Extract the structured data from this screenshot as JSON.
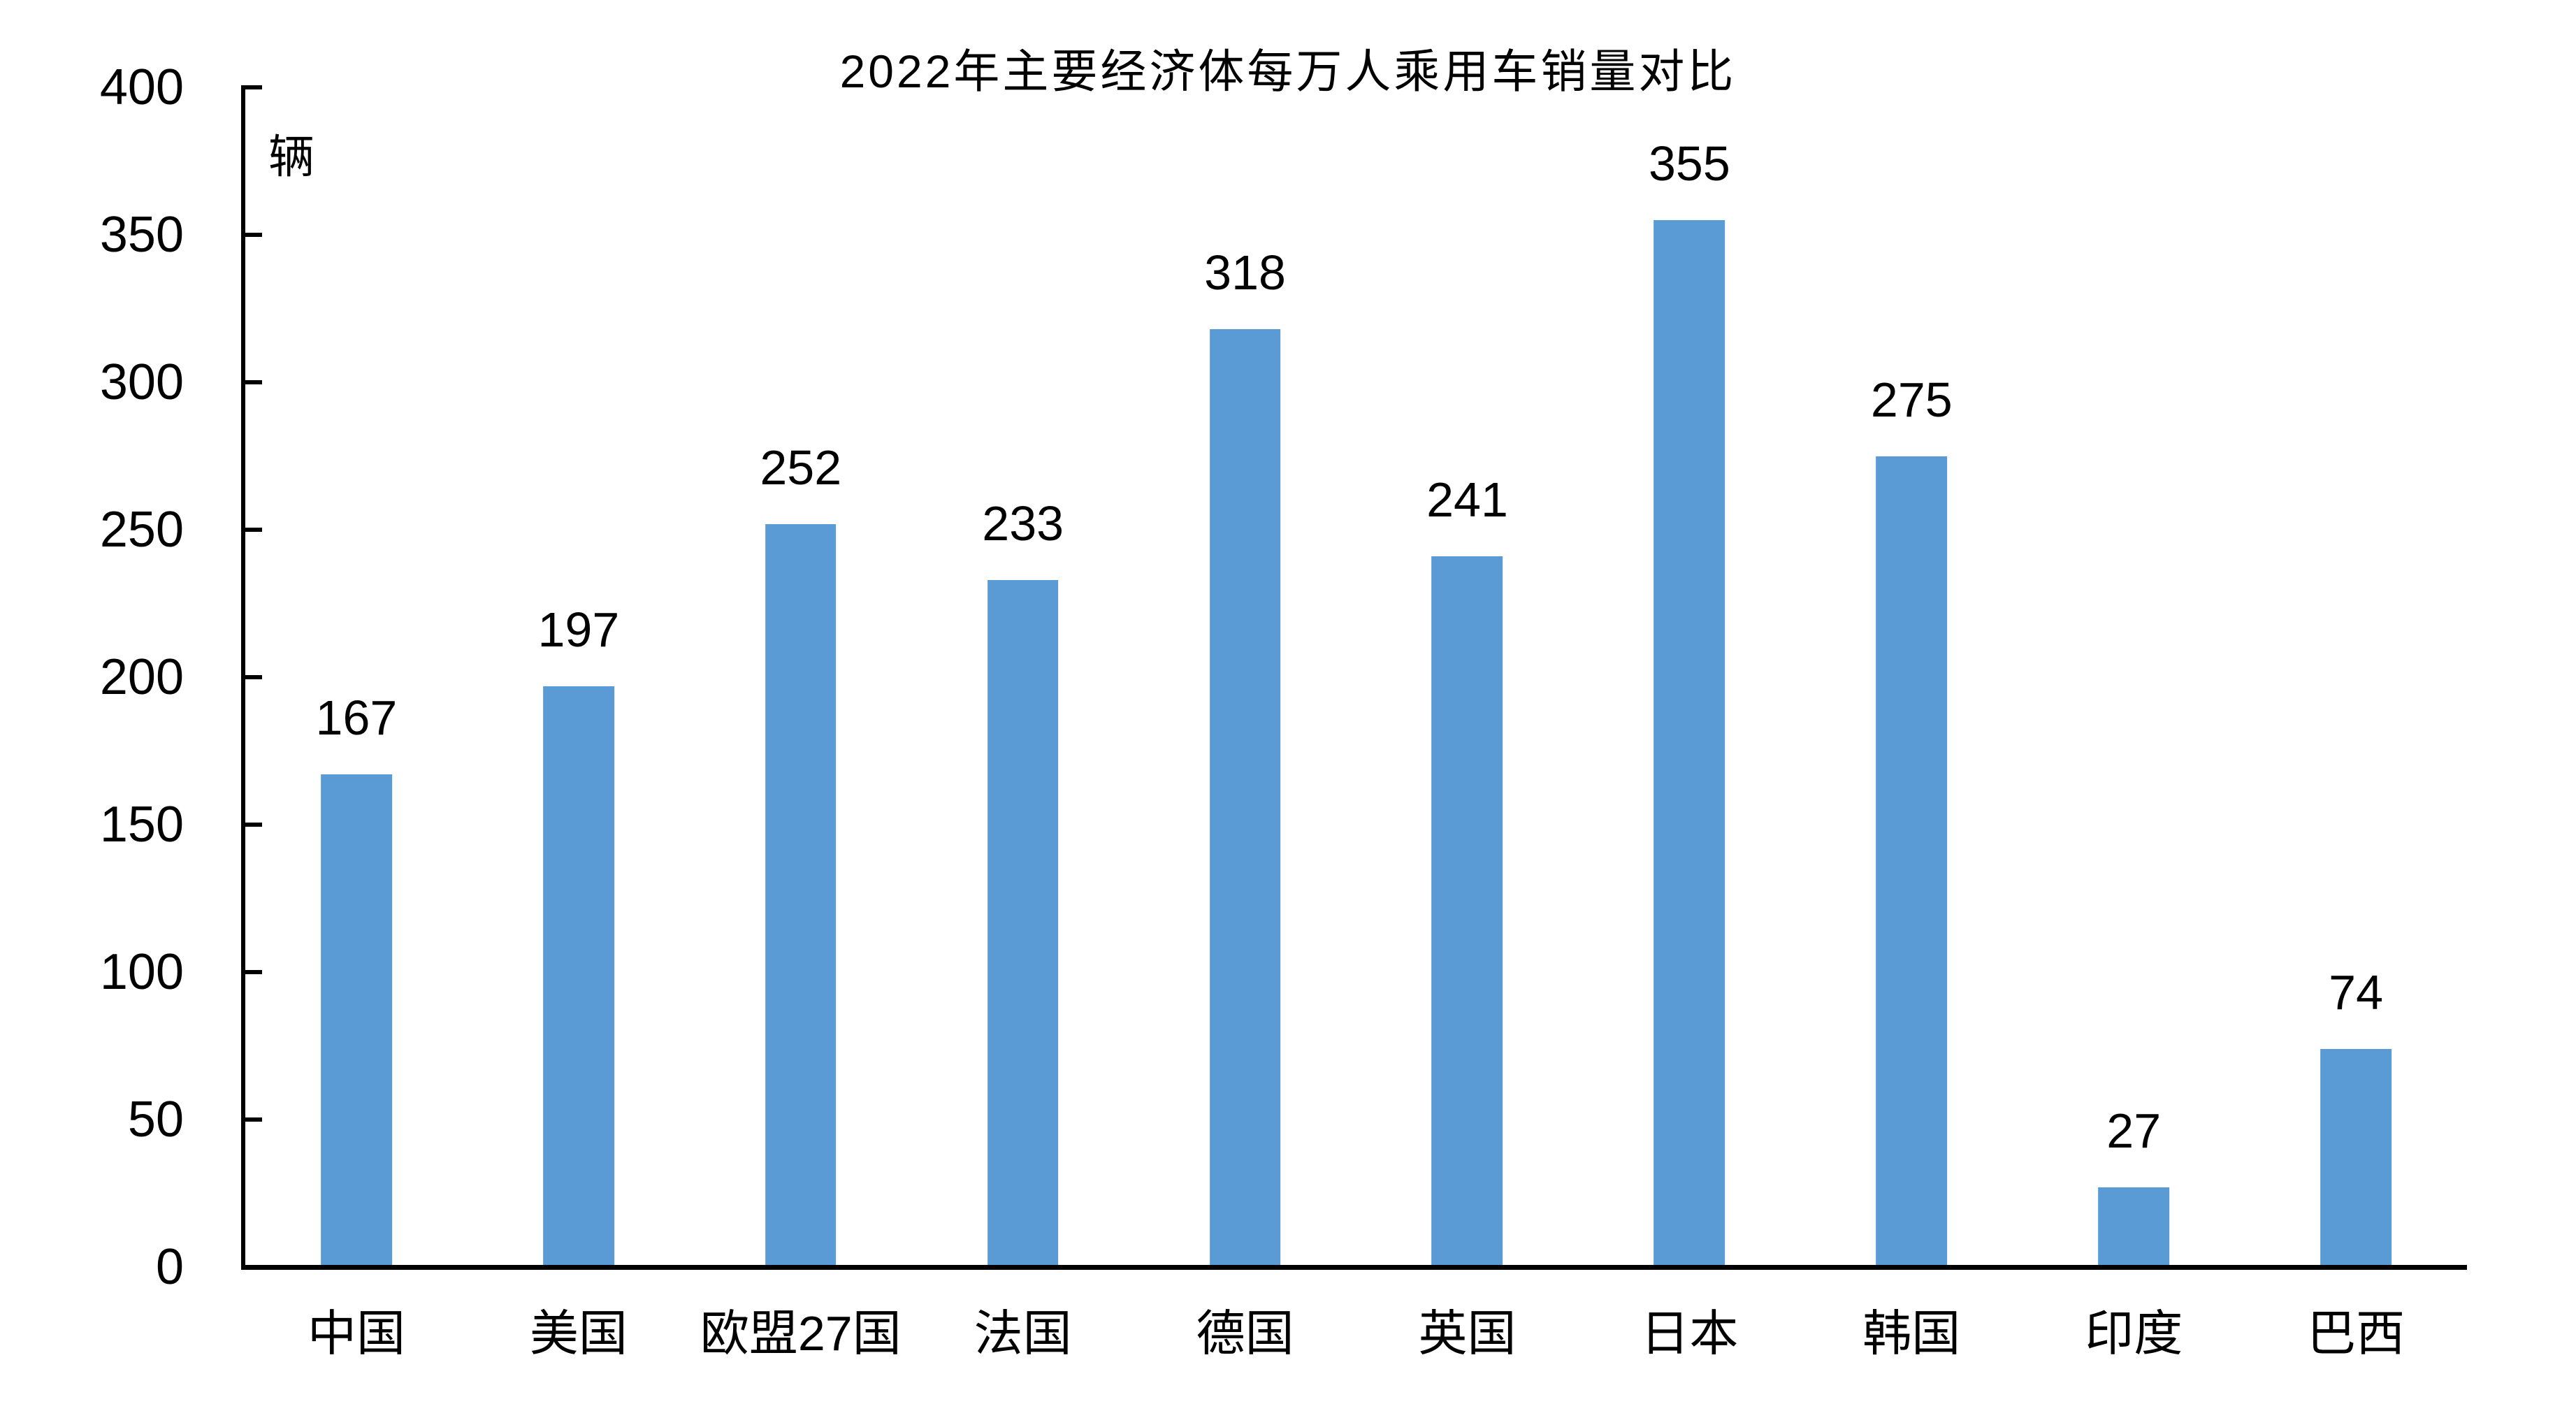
{
  "chart_data": {
    "type": "bar",
    "title": "2022年主要经济体每万人乘用车销量对比",
    "unit_label": "辆",
    "categories": [
      "中国",
      "美国",
      "欧盟27国",
      "法国",
      "德国",
      "英国",
      "日本",
      "韩国",
      "印度",
      "巴西"
    ],
    "values": [
      167,
      197,
      252,
      233,
      318,
      241,
      355,
      275,
      27,
      74
    ],
    "yticks": [
      0,
      50,
      100,
      150,
      200,
      250,
      300,
      350,
      400
    ],
    "ylim": [
      0,
      400
    ],
    "xlabel": "",
    "ylabel": "辆",
    "grid": false,
    "legend_position": "none",
    "data_labels_shown": true,
    "bar_color": "#5B9BD5",
    "axis_color": "#000000",
    "text_color": "#000000",
    "background_color": "#FFFFFF"
  }
}
